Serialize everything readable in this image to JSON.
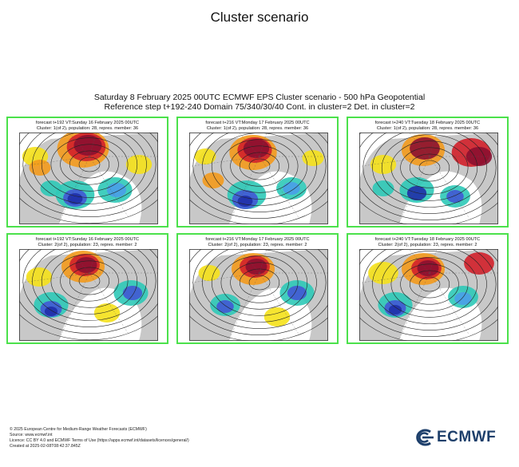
{
  "page": {
    "title": "Cluster scenario",
    "subtitle_line1": "Saturday 8 February 2025 00UTC ECMWF EPS Cluster scenario - 500 hPa Geopotential",
    "subtitle_line2": "Reference step t+192-240 Domain 75/340/30/40 Cont. in cluster=2 Det. in cluster=2"
  },
  "panels": [
    {
      "line1": "forecast t+192 VT:Sunday 16 February 2025 00UTC",
      "line2": "Cluster: 1(of 2), population: 28, repres. member: 36"
    },
    {
      "line1": "forecast t+216 VT:Monday 17 February 2025 00UTC",
      "line2": "Cluster: 1(of 2), population: 28, repres. member: 36"
    },
    {
      "line1": "forecast t+240 VT:Tuesday 18 February 2025 00UTC",
      "line2": "Cluster: 1(of 2), population: 28, repres. member: 36"
    },
    {
      "line1": "forecast t+192 VT:Sunday 16 February 2025 00UTC",
      "line2": "Cluster: 2(of 2), population: 23, repres. member: 2"
    },
    {
      "line1": "forecast t+216 VT:Monday 17 February 2025 00UTC",
      "line2": "Cluster: 2(of 2), population: 23, repres. member: 2"
    },
    {
      "line1": "forecast t+240 VT:Tuesday 18 February 2025 00UTC",
      "line2": "Cluster: 2(of 2), population: 23, repres. member: 2"
    }
  ],
  "footer": {
    "line1": "© 2025 European Centre for Medium-Range Weather Forecasts (ECMWF)",
    "line2": "Source: www.ecmwf.int",
    "line3": "Licence: CC BY 4.0 and ECMWF Terms of Use (https://apps.ecmwf.int/datasets/licences/general/)",
    "line4": "Created at 2025-02-08T08:42:37.845Z"
  },
  "logo": {
    "text": "ECMWF",
    "icon": "ecmwf-logo-icon"
  },
  "colors": {
    "panel_border": "#4be14b",
    "anomaly_positive": "#8b1030",
    "anomaly_negative": "#1f2fa8",
    "neutral": "#9a9a9a"
  }
}
